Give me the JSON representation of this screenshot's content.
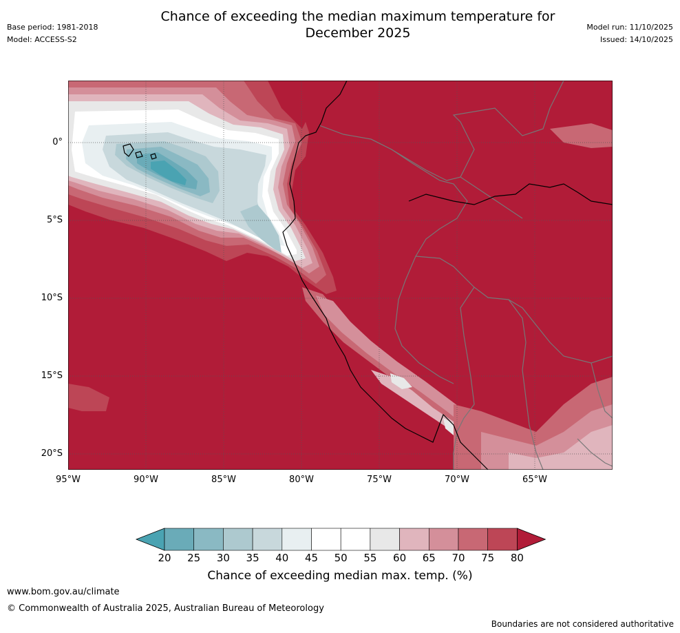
{
  "title": "Chance of exceeding the median maximum temperature for\nDecember 2025",
  "meta_left": [
    "Base period: 1981-2018",
    "Model: ACCESS-S2"
  ],
  "meta_right": [
    "Model run: 11/10/2025",
    "Issued: 14/10/2025"
  ],
  "map": {
    "region": "Eastern tropical Pacific and western South America",
    "lon_range": [
      -95,
      -60
    ],
    "lat_range": [
      -21,
      4
    ],
    "latitude_ticks": [
      {
        "label": "0°",
        "value": 0
      },
      {
        "label": "5°S",
        "value": -5
      },
      {
        "label": "10°S",
        "value": -10
      },
      {
        "label": "15°S",
        "value": -15
      },
      {
        "label": "20°S",
        "value": -20
      }
    ],
    "longitude_ticks": [
      {
        "label": "95°W",
        "value": -95
      },
      {
        "label": "90°W",
        "value": -90
      },
      {
        "label": "85°W",
        "value": -85
      },
      {
        "label": "80°W",
        "value": -80
      },
      {
        "label": "75°W",
        "value": -75
      },
      {
        "label": "70°W",
        "value": -70
      },
      {
        "label": "65°W",
        "value": -65
      }
    ]
  },
  "colorbar": {
    "label": "Chance of exceeding median max. temp. (%)",
    "ticks": [
      "20",
      "25",
      "30",
      "35",
      "40",
      "45",
      "50",
      "55",
      "60",
      "65",
      "70",
      "75",
      "80"
    ],
    "colors": [
      "#4aa3b2",
      "#6aabb8",
      "#8ab9c3",
      "#adc9cf",
      "#c8d8dc",
      "#e8eff1",
      "#ffffff",
      "#ffffff",
      "#e8e8e8",
      "#e0b5bd",
      "#d48f9a",
      "#c86874",
      "#bd4656",
      "#b11c38"
    ]
  },
  "footer": {
    "url": "www.bom.gov.au/climate",
    "copyright": "© Commonwealth of Australia 2025, Australian Bureau of Meteorology",
    "disclaimer": "Boundaries are not considered authoritative"
  }
}
